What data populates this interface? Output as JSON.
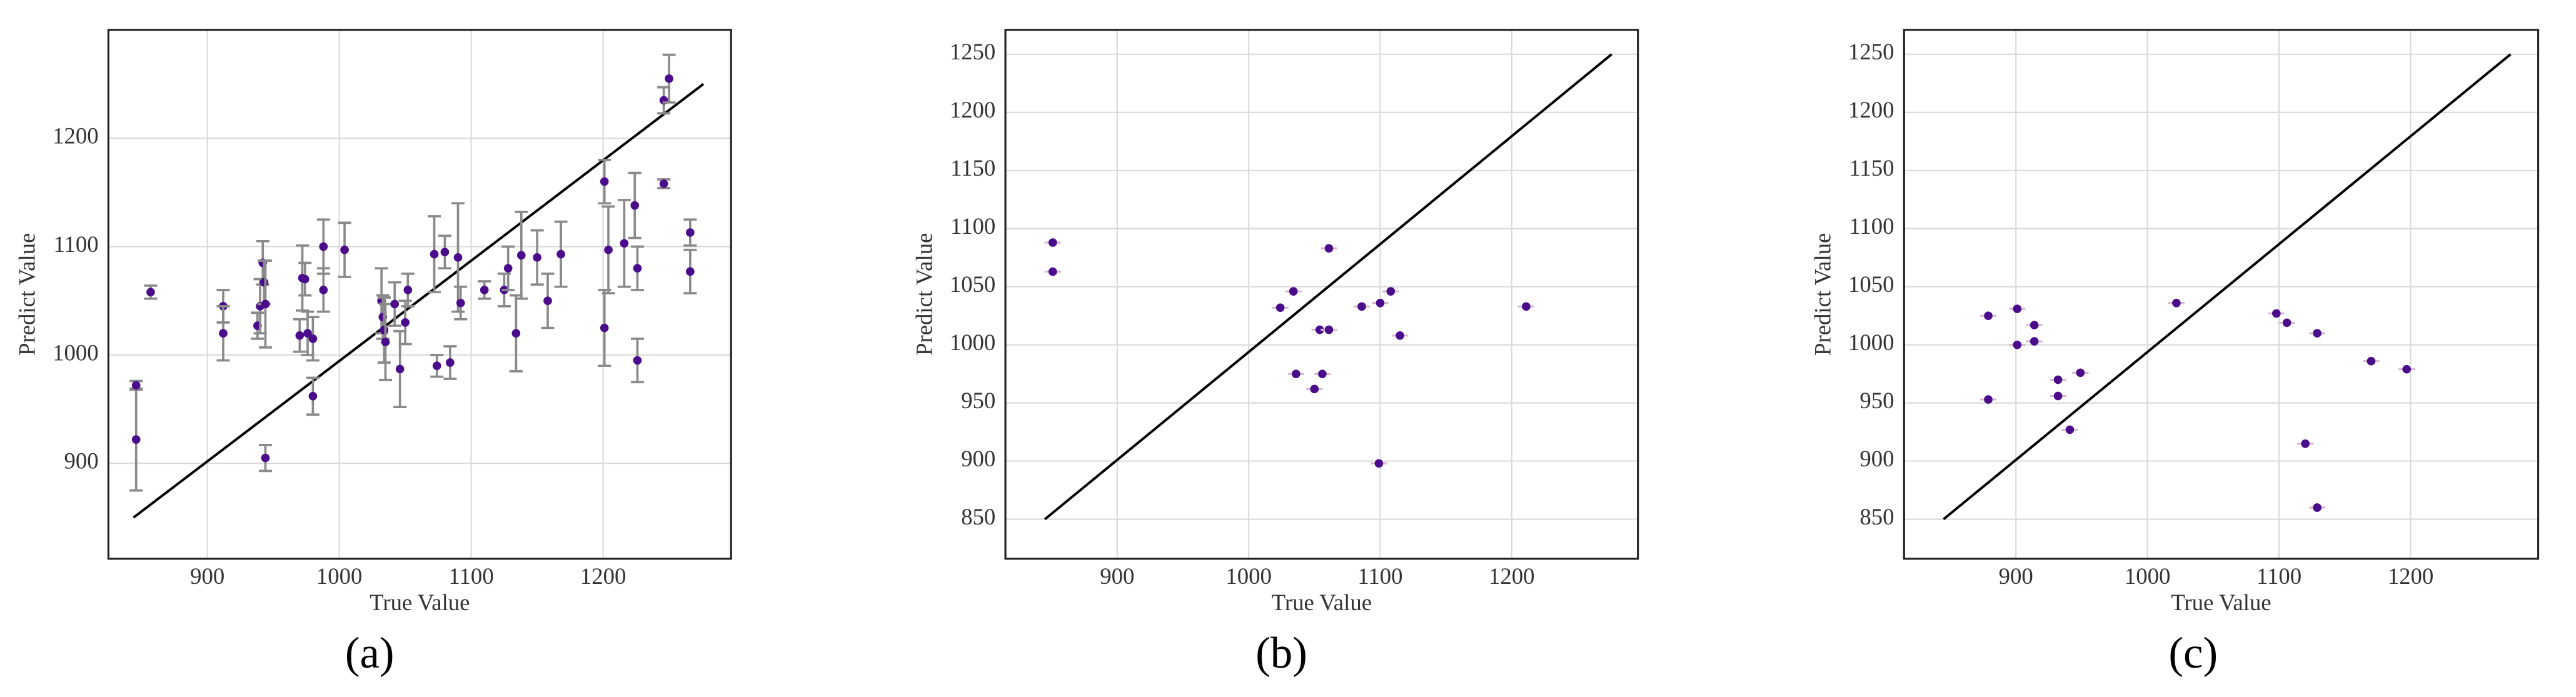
{
  "chart_data": [
    {
      "type": "scatter",
      "caption": "(a)",
      "xlabel": "True Value",
      "ylabel": "Predict Value",
      "xlim": [
        825,
        1297
      ],
      "ylim": [
        812,
        1300
      ],
      "xticks": [
        900,
        1000,
        1100,
        1200
      ],
      "yticks": [
        900,
        1000,
        1100,
        1200
      ],
      "grid": true,
      "line": {
        "x": [
          844,
          1276
        ],
        "y": [
          850,
          1250
        ],
        "color": "#000000"
      },
      "series": [
        {
          "color": "#4b0c8c",
          "error_color": "#8a8a8a",
          "x": [
            846,
            846,
            857,
            912,
            912,
            938,
            940,
            942,
            943,
            944,
            944,
            970,
            972,
            974,
            976,
            980,
            980,
            988,
            988,
            1004,
            1032,
            1033,
            1034,
            1035,
            1042,
            1046,
            1050,
            1052,
            1072,
            1074,
            1080,
            1084,
            1090,
            1092,
            1110,
            1125,
            1128,
            1134,
            1138,
            1150,
            1158,
            1168,
            1201,
            1204,
            1201,
            1216,
            1224,
            1226,
            1226,
            1246,
            1246,
            1250,
            1266,
            1266
          ],
          "y": [
            922,
            972,
            1058,
            1045,
            1020,
            1027,
            1045,
            1085,
            1067,
            1047,
            905,
            1018,
            1071,
            1070,
            1020,
            1015,
            962,
            1100,
            1060,
            1097,
            1050,
            1035,
            1023,
            1012,
            1047,
            987,
            1030,
            1060,
            1093,
            990,
            1095,
            993,
            1090,
            1048,
            1060,
            1060,
            1080,
            1020,
            1092,
            1090,
            1050,
            1093,
            1160,
            1097,
            1025,
            1103,
            1138,
            1080,
            995,
            1235,
            1158,
            1255,
            1113,
            1077
          ],
          "yerr": [
            47,
            4,
            6,
            15,
            25,
            12,
            25,
            20,
            20,
            40,
            12,
            15,
            30,
            15,
            20,
            20,
            17,
            25,
            20,
            25,
            30,
            20,
            30,
            35,
            20,
            35,
            20,
            15,
            35,
            10,
            15,
            15,
            50,
            15,
            8,
            15,
            20,
            35,
            40,
            25,
            25,
            30,
            20,
            40,
            35,
            40,
            30,
            20,
            20,
            12,
            4,
            22,
            12,
            20
          ]
        }
      ]
    },
    {
      "type": "scatter",
      "caption": "(b)",
      "xlabel": "True Value",
      "ylabel": "Predict Value",
      "xlim": [
        815,
        1296
      ],
      "ylim": [
        816,
        1271
      ],
      "xticks": [
        900,
        1000,
        1100,
        1200
      ],
      "yticks": [
        850,
        900,
        950,
        1000,
        1050,
        1100,
        1150,
        1200,
        1250
      ],
      "grid": true,
      "line": {
        "x": [
          845,
          1276
        ],
        "y": [
          850,
          1250
        ],
        "color": "#000000"
      },
      "series": [
        {
          "color": "#4b0c8c",
          "x": [
            851,
            851,
            1024,
            1034,
            1036,
            1050,
            1056,
            1061,
            1054,
            1061,
            1086,
            1100,
            1108,
            1115,
            1099,
            1211
          ],
          "y": [
            1088,
            1063,
            1032,
            1046,
            975,
            962,
            975,
            1083,
            1013,
            1013,
            1033,
            1036,
            1046,
            1008,
            898,
            1033
          ]
        }
      ]
    },
    {
      "type": "scatter",
      "caption": "(c)",
      "xlabel": "True Value",
      "ylabel": "Predict Value",
      "xlim": [
        815,
        1297
      ],
      "ylim": [
        816,
        1271
      ],
      "xticks": [
        900,
        1000,
        1100,
        1200
      ],
      "yticks": [
        850,
        900,
        950,
        1000,
        1050,
        1100,
        1150,
        1200,
        1250
      ],
      "grid": true,
      "line": {
        "x": [
          845,
          1276
        ],
        "y": [
          850,
          1250
        ],
        "color": "#000000"
      },
      "series": [
        {
          "color": "#4b0c8c",
          "x": [
            879,
            879,
            901,
            901,
            914,
            914,
            932,
            932,
            949,
            941,
            1022,
            1098,
            1106,
            1129,
            1170,
            1197,
            1120,
            1129
          ],
          "y": [
            1025,
            953,
            1031,
            1000,
            1017,
            1003,
            970,
            956,
            976,
            927,
            1036,
            1027,
            1019,
            1010,
            986,
            979,
            915,
            860
          ]
        }
      ]
    }
  ]
}
